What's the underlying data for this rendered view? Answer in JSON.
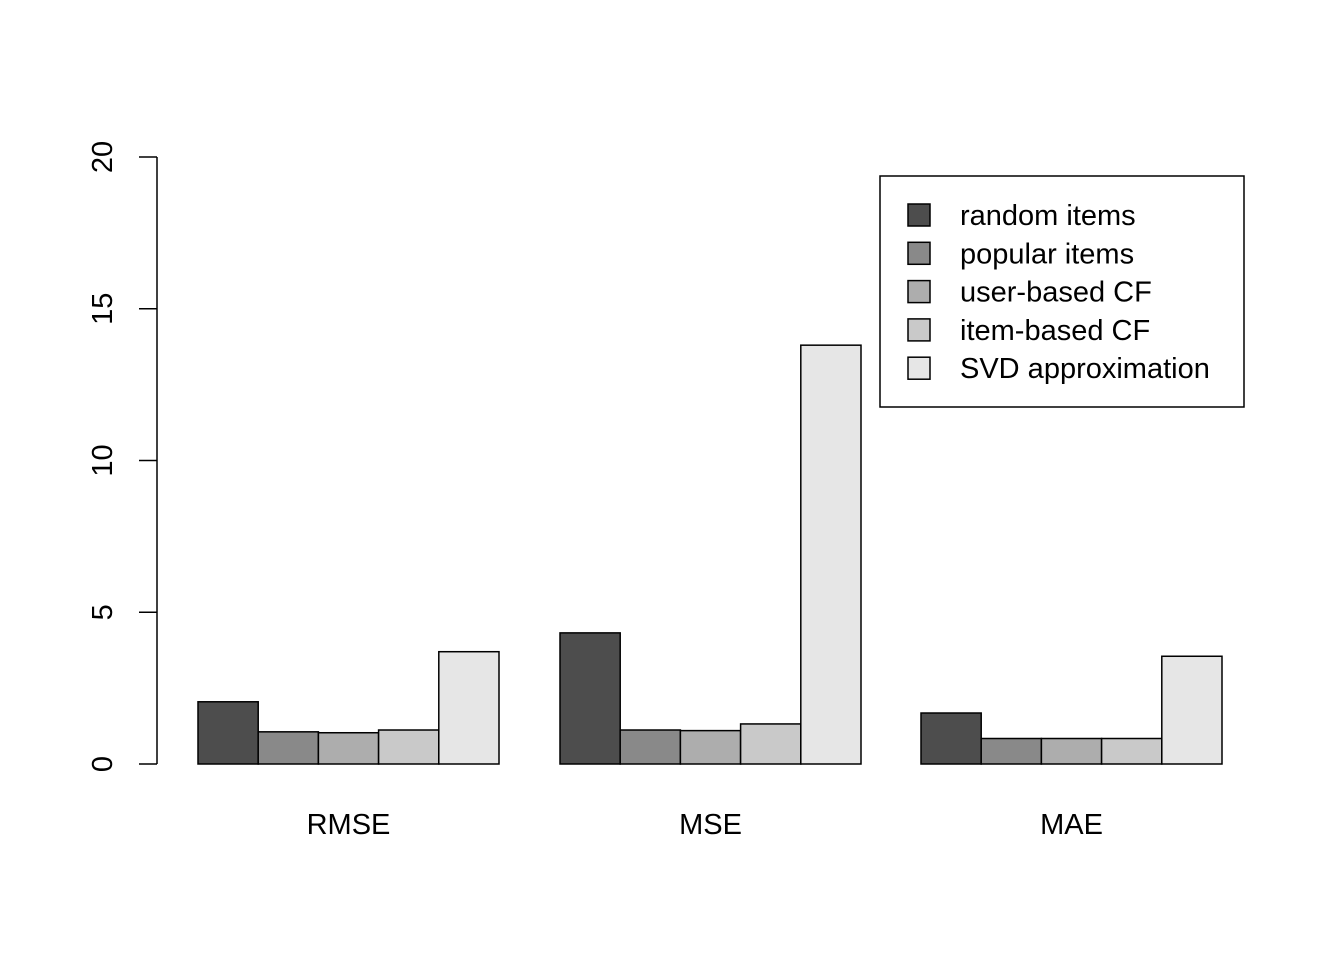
{
  "chart_data": {
    "type": "bar",
    "title": "",
    "xlabel": "",
    "ylabel": "",
    "categories": [
      "RMSE",
      "MSE",
      "MAE"
    ],
    "ylim": [
      0,
      20
    ],
    "y_ticks": [
      "0",
      "5",
      "10",
      "15",
      "20"
    ],
    "series": [
      {
        "name": "random items",
        "color": "#4d4d4d",
        "values": [
          2.05,
          4.32,
          1.68
        ]
      },
      {
        "name": "popular items",
        "color": "#898989",
        "values": [
          1.06,
          1.12,
          0.84
        ]
      },
      {
        "name": "user-based CF",
        "color": "#adadad",
        "values": [
          1.03,
          1.1,
          0.84
        ]
      },
      {
        "name": "item-based CF",
        "color": "#c9c9c9",
        "values": [
          1.12,
          1.32,
          0.84
        ]
      },
      {
        "name": "SVD approximation",
        "color": "#e6e6e6",
        "values": [
          3.7,
          13.8,
          3.55
        ]
      }
    ],
    "legend": {
      "position": "top-right"
    },
    "grid": false
  }
}
